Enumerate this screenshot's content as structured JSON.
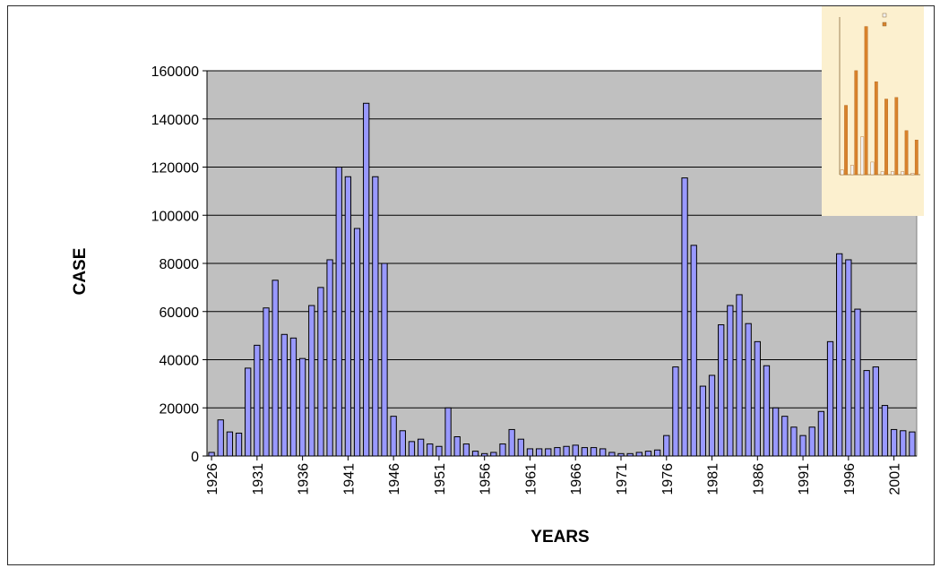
{
  "chart_data": {
    "type": "bar",
    "xlabel": "YEARS",
    "ylabel": "CASE",
    "ylim": [
      0,
      160000
    ],
    "yticks": [
      "0",
      "20000",
      "40000",
      "60000",
      "80000",
      "100000",
      "120000",
      "140000",
      "160000"
    ],
    "xticks": [
      "1926",
      "1931",
      "1936",
      "1941",
      "1946",
      "1951",
      "1956",
      "1961",
      "1966",
      "1971",
      "1976",
      "1981",
      "1986",
      "1991",
      "1996",
      "2001"
    ],
    "grid": true,
    "plot_background": "#c0c0c0",
    "bar_color": "#9999ff",
    "series": [
      {
        "x": [
          1926,
          1927,
          1928,
          1929,
          1930,
          1931,
          1932,
          1933,
          1934,
          1935,
          1936,
          1937,
          1938,
          1939,
          1940,
          1941,
          1942,
          1943,
          1944,
          1945,
          1946,
          1947,
          1948,
          1949,
          1950,
          1951,
          1952,
          1953,
          1954,
          1955,
          1956,
          1957,
          1958,
          1959,
          1960,
          1961,
          1962,
          1963,
          1964,
          1965,
          1966,
          1967,
          1968,
          1969,
          1970,
          1971,
          1972,
          1973,
          1974,
          1975,
          1976,
          1977,
          1978,
          1979,
          1980,
          1981,
          1982,
          1983,
          1984,
          1985,
          1986,
          1987,
          1988,
          1989,
          1990,
          1991,
          1992,
          1993,
          1994,
          1995,
          1996,
          1997,
          1998,
          1999,
          2000,
          2001,
          2002,
          2003
        ],
        "values": [
          1500,
          15000,
          10000,
          9500,
          36500,
          46000,
          61500,
          73000,
          50500,
          49000,
          40500,
          62500,
          70000,
          81500,
          120000,
          116000,
          94500,
          146500,
          116000,
          80000,
          16500,
          10500,
          6000,
          7000,
          5000,
          4000,
          20000,
          8000,
          5000,
          2000,
          1000,
          1500,
          5000,
          11000,
          7000,
          3000,
          3000,
          3000,
          3500,
          4000,
          4500,
          3500,
          3500,
          3000,
          1500,
          1000,
          1000,
          1500,
          2000,
          2500,
          8500,
          37000,
          115500,
          87500,
          29000,
          33500,
          54500,
          62500,
          67000,
          55000,
          47500,
          37500,
          20000,
          16500,
          12000,
          8500,
          12000,
          18500,
          47500,
          84000,
          81500,
          61000,
          35500,
          37000,
          21000,
          11000,
          10500,
          10000
        ]
      }
    ],
    "inset": {
      "description_visible": false,
      "x": [
        1996,
        1997,
        1998,
        1999,
        2000,
        2001,
        2002,
        2003
      ],
      "series": [
        {
          "color": "#f2f2f2",
          "values": [
            1500,
            3000,
            12000,
            4000,
            1000,
            1000,
            1000,
            500
          ]
        },
        {
          "color": "#d9822b",
          "values": [
            22000,
            33000,
            47000,
            29500,
            24000,
            24500,
            14000,
            11000
          ]
        }
      ],
      "ylim": [
        0,
        50000
      ]
    }
  }
}
